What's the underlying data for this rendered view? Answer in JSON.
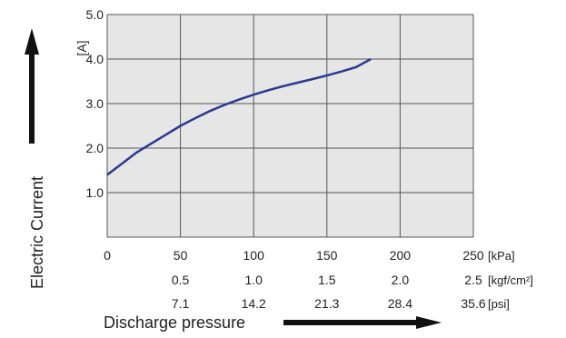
{
  "chart_data": {
    "type": "line",
    "xlabel": "Discharge pressure",
    "ylabel": "Electric Current",
    "y_unit": "[A]",
    "xlim": [
      0,
      250
    ],
    "ylim": [
      0,
      5.0
    ],
    "y_ticks": [
      "1.0",
      "2.0",
      "3.0",
      "4.0",
      "5.0"
    ],
    "x_tick_values": [
      0,
      50,
      100,
      150,
      200,
      250
    ],
    "x_tick_rows": [
      {
        "unit": "[kPa]",
        "labels": [
          "0",
          "50",
          "100",
          "150",
          "200",
          "250"
        ]
      },
      {
        "unit": "[kgf/cm²]",
        "labels": [
          "0.5",
          "1.0",
          "1.5",
          "2.0",
          "2.5"
        ]
      },
      {
        "unit": "[psi]",
        "labels": [
          "7.1",
          "14.2",
          "21.3",
          "28.4",
          "35.6"
        ]
      }
    ],
    "grid": true,
    "colors": {
      "plot_bg": "#e6e6e6",
      "line": "#2b3990",
      "grid": "#555555"
    },
    "series": [
      {
        "x": [
          0,
          10,
          20,
          30,
          40,
          50,
          60,
          70,
          80,
          90,
          100,
          110,
          120,
          130,
          140,
          150,
          160,
          170,
          180
        ],
        "values": [
          1.4,
          1.65,
          1.9,
          2.1,
          2.3,
          2.5,
          2.67,
          2.83,
          2.97,
          3.09,
          3.2,
          3.3,
          3.39,
          3.47,
          3.55,
          3.63,
          3.72,
          3.82,
          4.0
        ]
      }
    ]
  }
}
